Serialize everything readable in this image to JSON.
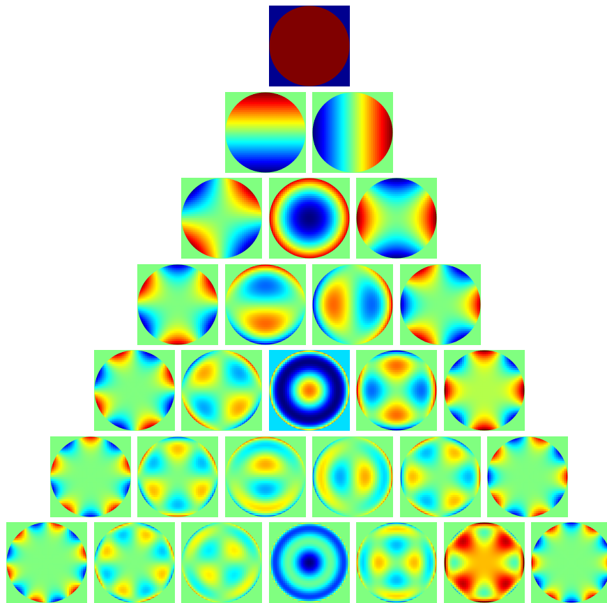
{
  "figure": {
    "colormap": "jet",
    "rows": [
      {
        "n": 0,
        "terms": [
          {
            "m": 0,
            "bg": "#00008f"
          }
        ]
      },
      {
        "n": 1,
        "terms": [
          {
            "m": -1,
            "bg": "#80ff80"
          },
          {
            "m": 1,
            "bg": "#80ff80"
          }
        ]
      },
      {
        "n": 2,
        "terms": [
          {
            "m": -2,
            "bg": "#80ff80"
          },
          {
            "m": 0,
            "bg": "#80ff80"
          },
          {
            "m": 2,
            "bg": "#80ff80"
          }
        ]
      },
      {
        "n": 3,
        "terms": [
          {
            "m": -3,
            "bg": "#80ff80"
          },
          {
            "m": -1,
            "bg": "#80ff80"
          },
          {
            "m": 1,
            "bg": "#80ff80"
          },
          {
            "m": 3,
            "bg": "#80ff80"
          }
        ]
      },
      {
        "n": 4,
        "terms": [
          {
            "m": -4,
            "bg": "#80ff80"
          },
          {
            "m": -2,
            "bg": "#80ff80"
          },
          {
            "m": 0,
            "bg": "#00dfff"
          },
          {
            "m": 2,
            "bg": "#80ff80"
          },
          {
            "m": 4,
            "bg": "#80ff80"
          }
        ]
      },
      {
        "n": 5,
        "terms": [
          {
            "m": -5,
            "bg": "#80ff80"
          },
          {
            "m": -3,
            "bg": "#80ff80"
          },
          {
            "m": -1,
            "bg": "#80ff80"
          },
          {
            "m": 1,
            "bg": "#80ff80"
          },
          {
            "m": 3,
            "bg": "#80ff80"
          },
          {
            "m": 5,
            "bg": "#80ff80"
          }
        ]
      },
      {
        "n": 6,
        "terms": [
          {
            "m": -6,
            "bg": "#80ff80"
          },
          {
            "m": -4,
            "bg": "#80ff80"
          },
          {
            "m": -2,
            "bg": "#80ff80"
          },
          {
            "m": 0,
            "bg": "#80ff80"
          },
          {
            "m": 2,
            "bg": "#80ff80"
          },
          {
            "m": 4,
            "bg": "#80ff80"
          },
          {
            "m": 6,
            "bg": "#80ff80"
          }
        ]
      }
    ]
  }
}
